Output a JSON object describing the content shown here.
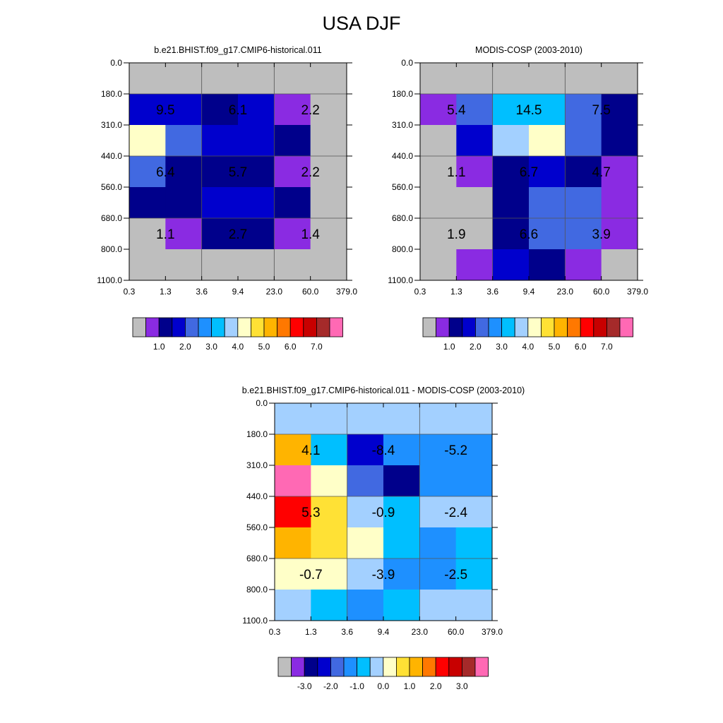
{
  "title": "USA DJF",
  "palettes": {
    "main": [
      "#bebebe",
      "#8a2be2",
      "#00008b",
      "#0000cd",
      "#4169e1",
      "#1e90ff",
      "#00bfff",
      "#a3d0ff",
      "#ffffc8",
      "#ffe135",
      "#ffb400",
      "#ff7800",
      "#ff0000",
      "#c80000",
      "#a52a2a",
      "#ff69b4"
    ],
    "diff": [
      "#bebebe",
      "#8a2be2",
      "#00008b",
      "#0000cd",
      "#4169e1",
      "#1e90ff",
      "#00bfff",
      "#a3d0ff",
      "#ffffc8",
      "#ffe135",
      "#ffb400",
      "#ff7800",
      "#ff0000",
      "#c80000",
      "#a52a2a",
      "#ff69b4"
    ]
  },
  "chart_data": [
    {
      "type": "heatmap",
      "title": "b.e21.BHIST.f09_g17.CMIP6-historical.011",
      "x_ticks": [
        "0.3",
        "1.3",
        "3.6",
        "9.4",
        "23.0",
        "60.0",
        "379.0"
      ],
      "y_ticks": [
        "0.0",
        "180.0",
        "310.0",
        "440.0",
        "560.0",
        "680.0",
        "800.0",
        "1100.0"
      ],
      "cells": [
        [
          0,
          0,
          0,
          0,
          0,
          0
        ],
        [
          3,
          3,
          2,
          3,
          1,
          0
        ],
        [
          8,
          4,
          3,
          3,
          2,
          0
        ],
        [
          4,
          2,
          2,
          2,
          1,
          0
        ],
        [
          2,
          2,
          3,
          3,
          2,
          0
        ],
        [
          0,
          1,
          2,
          2,
          1,
          0
        ],
        [
          0,
          0,
          0,
          0,
          0,
          0
        ]
      ],
      "labels": [
        {
          "col": 1,
          "row": 1.5,
          "text": "9.5"
        },
        {
          "col": 3,
          "row": 1.5,
          "text": "6.1"
        },
        {
          "col": 5,
          "row": 1.5,
          "text": "2.2"
        },
        {
          "col": 1,
          "row": 3.5,
          "text": "6.4"
        },
        {
          "col": 3,
          "row": 3.5,
          "text": "5.7"
        },
        {
          "col": 5,
          "row": 3.5,
          "text": "2.2"
        },
        {
          "col": 1,
          "row": 5.5,
          "text": "1.1"
        },
        {
          "col": 3,
          "row": 5.5,
          "text": "2.7"
        },
        {
          "col": 5,
          "row": 5.5,
          "text": "1.4"
        }
      ],
      "palette": "main",
      "colorbar_labels": [
        "1.0",
        "2.0",
        "3.0",
        "4.0",
        "5.0",
        "6.0",
        "7.0"
      ]
    },
    {
      "type": "heatmap",
      "title": "MODIS-COSP (2003-2010)",
      "x_ticks": [
        "0.3",
        "1.3",
        "3.6",
        "9.4",
        "23.0",
        "60.0",
        "379.0"
      ],
      "y_ticks": [
        "0.0",
        "180.0",
        "310.0",
        "440.0",
        "560.0",
        "680.0",
        "800.0",
        "1100.0"
      ],
      "cells": [
        [
          0,
          0,
          0,
          0,
          0,
          0
        ],
        [
          1,
          4,
          6,
          6,
          4,
          2
        ],
        [
          0,
          3,
          7,
          8,
          4,
          2
        ],
        [
          0,
          1,
          2,
          3,
          2,
          1
        ],
        [
          0,
          0,
          2,
          4,
          4,
          1
        ],
        [
          0,
          0,
          2,
          4,
          4,
          1
        ],
        [
          0,
          1,
          3,
          2,
          1,
          0
        ]
      ],
      "labels": [
        {
          "col": 1,
          "row": 1.5,
          "text": "5.4"
        },
        {
          "col": 3,
          "row": 1.5,
          "text": "14.5"
        },
        {
          "col": 5,
          "row": 1.5,
          "text": "7.5"
        },
        {
          "col": 1,
          "row": 3.5,
          "text": "1.1"
        },
        {
          "col": 3,
          "row": 3.5,
          "text": "6.7"
        },
        {
          "col": 5,
          "row": 3.5,
          "text": "4.7"
        },
        {
          "col": 1,
          "row": 5.5,
          "text": "1.9"
        },
        {
          "col": 3,
          "row": 5.5,
          "text": "6.6"
        },
        {
          "col": 5,
          "row": 5.5,
          "text": "3.9"
        }
      ],
      "palette": "main",
      "colorbar_labels": [
        "1.0",
        "2.0",
        "3.0",
        "4.0",
        "5.0",
        "6.0",
        "7.0"
      ]
    },
    {
      "type": "heatmap",
      "title": "b.e21.BHIST.f09_g17.CMIP6-historical.011 - MODIS-COSP (2003-2010)",
      "x_ticks": [
        "0.3",
        "1.3",
        "3.6",
        "9.4",
        "23.0",
        "60.0",
        "379.0"
      ],
      "y_ticks": [
        "0.0",
        "180.0",
        "310.0",
        "440.0",
        "560.0",
        "680.0",
        "800.0",
        "1100.0"
      ],
      "cells": [
        [
          7,
          7,
          7,
          7,
          7,
          7
        ],
        [
          10,
          6,
          3,
          5,
          5,
          5
        ],
        [
          15,
          8,
          4,
          2,
          5,
          5
        ],
        [
          12,
          9,
          7,
          6,
          7,
          7
        ],
        [
          10,
          9,
          8,
          6,
          5,
          6
        ],
        [
          8,
          8,
          7,
          5,
          5,
          6
        ],
        [
          7,
          6,
          5,
          6,
          7,
          7
        ]
      ],
      "labels": [
        {
          "col": 1,
          "row": 1.5,
          "text": "4.1"
        },
        {
          "col": 3,
          "row": 1.5,
          "text": "-8.4"
        },
        {
          "col": 5,
          "row": 1.5,
          "text": "-5.2"
        },
        {
          "col": 1,
          "row": 3.5,
          "text": "5.3"
        },
        {
          "col": 3,
          "row": 3.5,
          "text": "-0.9"
        },
        {
          "col": 5,
          "row": 3.5,
          "text": "-2.4"
        },
        {
          "col": 1,
          "row": 5.5,
          "text": "-0.7"
        },
        {
          "col": 3,
          "row": 5.5,
          "text": "-3.9"
        },
        {
          "col": 5,
          "row": 5.5,
          "text": "-2.5"
        }
      ],
      "palette": "diff",
      "colorbar_labels": [
        "-3.0",
        "-2.0",
        "-1.0",
        "0.0",
        "1.0",
        "2.0",
        "3.0"
      ]
    }
  ]
}
